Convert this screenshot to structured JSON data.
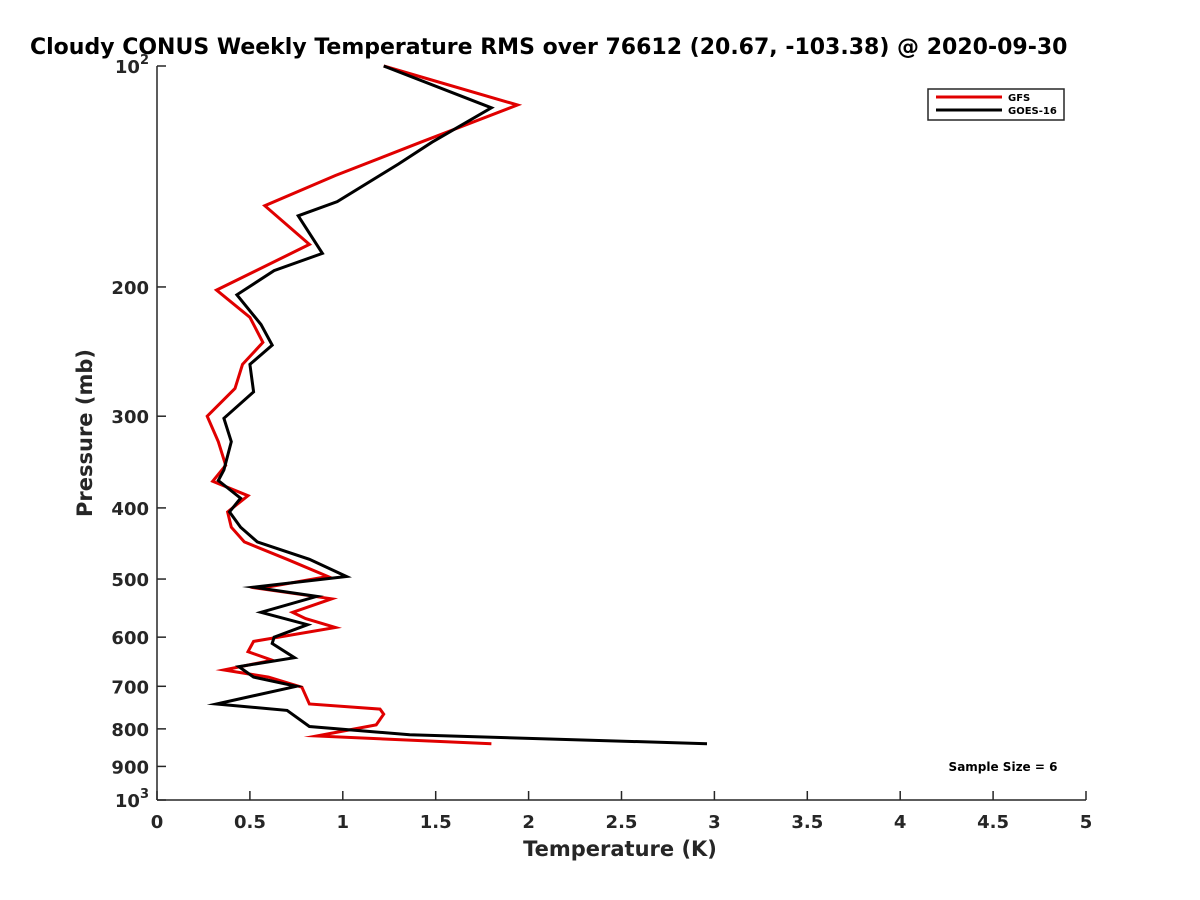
{
  "chart_data": {
    "type": "line",
    "title": "Cloudy CONUS Weekly Temperature RMS over 76612 (20.67, -103.38) @ 2020-09-30",
    "xlabel": "Temperature (K)",
    "ylabel": "Pressure (mb)",
    "xlim": [
      0,
      5
    ],
    "ylim": [
      100,
      1000
    ],
    "yscale": "log",
    "yreversed": true,
    "x_ticks": [
      "0",
      "0.5",
      "1",
      "1.5",
      "2",
      "2.5",
      "3",
      "3.5",
      "4",
      "4.5",
      "5"
    ],
    "x_tick_values": [
      0,
      0.5,
      1,
      1.5,
      2,
      2.5,
      3,
      3.5,
      4,
      4.5,
      5
    ],
    "y_ticks": [
      {
        "value": 100,
        "base": "10",
        "exp": "2"
      },
      {
        "value": 200,
        "label": "200"
      },
      {
        "value": 300,
        "label": "300"
      },
      {
        "value": 400,
        "label": "400"
      },
      {
        "value": 500,
        "label": "500"
      },
      {
        "value": 600,
        "label": "600"
      },
      {
        "value": 700,
        "label": "700"
      },
      {
        "value": 800,
        "label": "800"
      },
      {
        "value": 900,
        "label": "900"
      },
      {
        "value": 1000,
        "base": "10",
        "exp": "3"
      }
    ],
    "grid": false,
    "legend_position": "top-right",
    "annotation": "Sample Size = 6",
    "series": [
      {
        "name": "GFS",
        "color": "#e00000",
        "points": [
          [
            1.22,
            100
          ],
          [
            1.94,
            113
          ],
          [
            1.42,
            127
          ],
          [
            0.96,
            141
          ],
          [
            0.58,
            155
          ],
          [
            0.82,
            175
          ],
          [
            0.32,
            202
          ],
          [
            0.5,
            220
          ],
          [
            0.57,
            238
          ],
          [
            0.46,
            255
          ],
          [
            0.42,
            275
          ],
          [
            0.27,
            300
          ],
          [
            0.33,
            325
          ],
          [
            0.37,
            350
          ],
          [
            0.3,
            368
          ],
          [
            0.49,
            385
          ],
          [
            0.38,
            405
          ],
          [
            0.4,
            425
          ],
          [
            0.47,
            445
          ],
          [
            0.7,
            470
          ],
          [
            0.92,
            496
          ],
          [
            0.55,
            515
          ],
          [
            0.94,
            532
          ],
          [
            0.73,
            555
          ],
          [
            0.8,
            566
          ],
          [
            0.96,
            582
          ],
          [
            0.52,
            608
          ],
          [
            0.49,
            628
          ],
          [
            0.62,
            645
          ],
          [
            0.36,
            665
          ],
          [
            0.6,
            680
          ],
          [
            0.78,
            702
          ],
          [
            0.82,
            740
          ],
          [
            1.2,
            752
          ],
          [
            1.22,
            764
          ],
          [
            1.18,
            790
          ],
          [
            0.86,
            818
          ],
          [
            1.8,
            838
          ]
        ]
      },
      {
        "name": "GOES-16",
        "color": "#000000",
        "points": [
          [
            1.22,
            100
          ],
          [
            1.8,
            114
          ],
          [
            1.48,
            127
          ],
          [
            1.3,
            136
          ],
          [
            0.97,
            153
          ],
          [
            0.76,
            160
          ],
          [
            0.89,
            180
          ],
          [
            0.63,
            190
          ],
          [
            0.43,
            205
          ],
          [
            0.56,
            225
          ],
          [
            0.62,
            240
          ],
          [
            0.5,
            255
          ],
          [
            0.52,
            278
          ],
          [
            0.36,
            302
          ],
          [
            0.4,
            325
          ],
          [
            0.36,
            355
          ],
          [
            0.33,
            367
          ],
          [
            0.45,
            388
          ],
          [
            0.39,
            405
          ],
          [
            0.45,
            425
          ],
          [
            0.54,
            445
          ],
          [
            0.82,
            470
          ],
          [
            1.02,
            496
          ],
          [
            0.52,
            513
          ],
          [
            0.86,
            528
          ],
          [
            0.56,
            555
          ],
          [
            0.81,
            577
          ],
          [
            0.63,
            600
          ],
          [
            0.62,
            612
          ],
          [
            0.74,
            640
          ],
          [
            0.44,
            658
          ],
          [
            0.52,
            680
          ],
          [
            0.75,
            700
          ],
          [
            0.32,
            740
          ],
          [
            0.7,
            755
          ],
          [
            0.82,
            794
          ],
          [
            1.36,
            815
          ],
          [
            2.96,
            838
          ]
        ]
      }
    ]
  }
}
